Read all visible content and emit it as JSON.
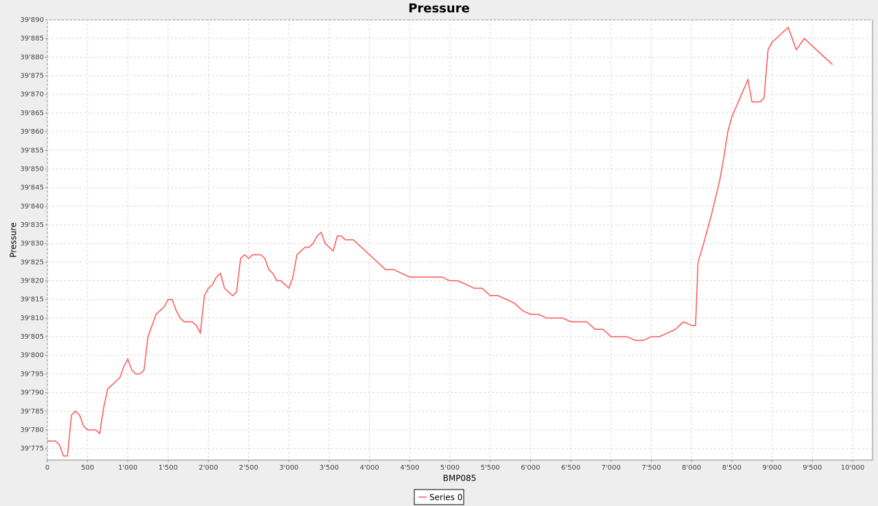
{
  "chart_data": {
    "type": "line",
    "title": "Pressure",
    "x_label": "BMP085",
    "y_label": "Pressure",
    "x": [
      0,
      100,
      150,
      200,
      250,
      300,
      350,
      400,
      450,
      500,
      550,
      600,
      650,
      700,
      750,
      800,
      850,
      900,
      950,
      1000,
      1050,
      1100,
      1150,
      1200,
      1250,
      1300,
      1350,
      1400,
      1450,
      1500,
      1550,
      1600,
      1650,
      1700,
      1750,
      1800,
      1850,
      1900,
      1950,
      2000,
      2050,
      2100,
      2150,
      2200,
      2250,
      2300,
      2350,
      2400,
      2450,
      2500,
      2550,
      2600,
      2650,
      2700,
      2750,
      2800,
      2850,
      2900,
      2950,
      3000,
      3050,
      3100,
      3150,
      3200,
      3250,
      3300,
      3350,
      3400,
      3450,
      3500,
      3550,
      3600,
      3650,
      3700,
      3750,
      3800,
      3850,
      3900,
      3950,
      4000,
      4100,
      4200,
      4300,
      4400,
      4500,
      4600,
      4700,
      4800,
      4900,
      5000,
      5100,
      5200,
      5300,
      5400,
      5500,
      5600,
      5700,
      5800,
      5900,
      6000,
      6100,
      6200,
      6300,
      6400,
      6500,
      6600,
      6700,
      6800,
      6900,
      7000,
      7100,
      7200,
      7300,
      7400,
      7500,
      7600,
      7700,
      7800,
      7900,
      8000,
      8050,
      8080,
      8150,
      8250,
      8350,
      8400,
      8450,
      8500,
      8600,
      8700,
      8750,
      8850,
      8900,
      8950,
      9000,
      9100,
      9200,
      9300,
      9400,
      9500,
      9600,
      9700,
      9750
    ],
    "series": [
      {
        "name": "Series 0",
        "color": "#ff5555",
        "values": [
          39777,
          39777,
          39776,
          39773,
          39773,
          39784,
          39785,
          39784,
          39781,
          39780,
          39780,
          39780,
          39779,
          39786,
          39791,
          39792,
          39793,
          39794,
          39797,
          39799,
          39796,
          39795,
          39795,
          39796,
          39805,
          39808,
          39811,
          39812,
          39813,
          39815,
          39815,
          39812,
          39810,
          39809,
          39809,
          39809,
          39808,
          39806,
          39816,
          39818,
          39819,
          39821,
          39822,
          39818,
          39817,
          39816,
          39817,
          39826,
          39827,
          39826,
          39827,
          39827,
          39827,
          39826,
          39823,
          39822,
          39820,
          39820,
          39819,
          39818,
          39821,
          39827,
          39828,
          39829,
          39829,
          39830,
          39832,
          39833,
          39830,
          39829,
          39828,
          39832,
          39832,
          39831,
          39831,
          39831,
          39830,
          39829,
          39828,
          39827,
          39825,
          39823,
          39823,
          39822,
          39821,
          39821,
          39821,
          39821,
          39821,
          39820,
          39820,
          39819,
          39818,
          39818,
          39816,
          39816,
          39815,
          39814,
          39812,
          39811,
          39811,
          39810,
          39810,
          39810,
          39809,
          39809,
          39809,
          39807,
          39807,
          39805,
          39805,
          39805,
          39804,
          39804,
          39805,
          39805,
          39806,
          39807,
          39809,
          39808,
          39808,
          39825,
          39830,
          39838,
          39847,
          39853,
          39860,
          39864,
          39869,
          39874,
          39868,
          39868,
          39869,
          39882,
          39884,
          39886,
          39888,
          39882,
          39885,
          39883,
          39881,
          39879,
          39878
        ]
      }
    ],
    "xlim": [
      0,
      10247
    ],
    "ylim": [
      39771.9,
      39890
    ],
    "xticks": [
      0,
      500,
      {
        "value": 1000,
        "label": "1'000"
      },
      {
        "value": 1500,
        "label": "1'500"
      },
      {
        "value": 2000,
        "label": "2'000"
      },
      {
        "value": 2500,
        "label": "2'500"
      },
      {
        "value": 3000,
        "label": "3'000"
      },
      {
        "value": 3500,
        "label": "3'500"
      },
      {
        "value": 4000,
        "label": "4'000"
      },
      {
        "value": 4500,
        "label": "4'500"
      },
      {
        "value": 5000,
        "label": "5'000"
      },
      {
        "value": 5500,
        "label": "5'500"
      },
      {
        "value": 6000,
        "label": "6'000"
      },
      {
        "value": 6500,
        "label": "6'500"
      },
      {
        "value": 7000,
        "label": "7'000"
      },
      {
        "value": 7500,
        "label": "7'500"
      },
      {
        "value": 8000,
        "label": "8'000"
      },
      {
        "value": 8500,
        "label": "8'500"
      },
      {
        "value": 9000,
        "label": "9'000"
      },
      {
        "value": 9500,
        "label": "9'500"
      },
      {
        "value": 10000,
        "label": "10'000"
      }
    ],
    "yticks": [
      {
        "value": 39775,
        "label": "39'775"
      },
      {
        "value": 39780,
        "label": "39'780"
      },
      {
        "value": 39785,
        "label": "39'785"
      },
      {
        "value": 39790,
        "label": "39'790"
      },
      {
        "value": 39795,
        "label": "39'795"
      },
      {
        "value": 39800,
        "label": "39'800"
      },
      {
        "value": 39805,
        "label": "39'805"
      },
      {
        "value": 39810,
        "label": "39'810"
      },
      {
        "value": 39815,
        "label": "39'815"
      },
      {
        "value": 39820,
        "label": "39'820"
      },
      {
        "value": 39825,
        "label": "39'825"
      },
      {
        "value": 39830,
        "label": "39'830"
      },
      {
        "value": 39835,
        "label": "39'835"
      },
      {
        "value": 39840,
        "label": "39'840"
      },
      {
        "value": 39845,
        "label": "39'845"
      },
      {
        "value": 39850,
        "label": "39'850"
      },
      {
        "value": 39855,
        "label": "39'855"
      },
      {
        "value": 39860,
        "label": "39'860"
      },
      {
        "value": 39865,
        "label": "39'865"
      },
      {
        "value": 39870,
        "label": "39'870"
      },
      {
        "value": 39875,
        "label": "39'875"
      },
      {
        "value": 39880,
        "label": "39'880"
      },
      {
        "value": 39885,
        "label": "39'885"
      },
      {
        "value": 39890,
        "label": "39'890"
      }
    ],
    "grid": true,
    "legend": "bottom"
  }
}
